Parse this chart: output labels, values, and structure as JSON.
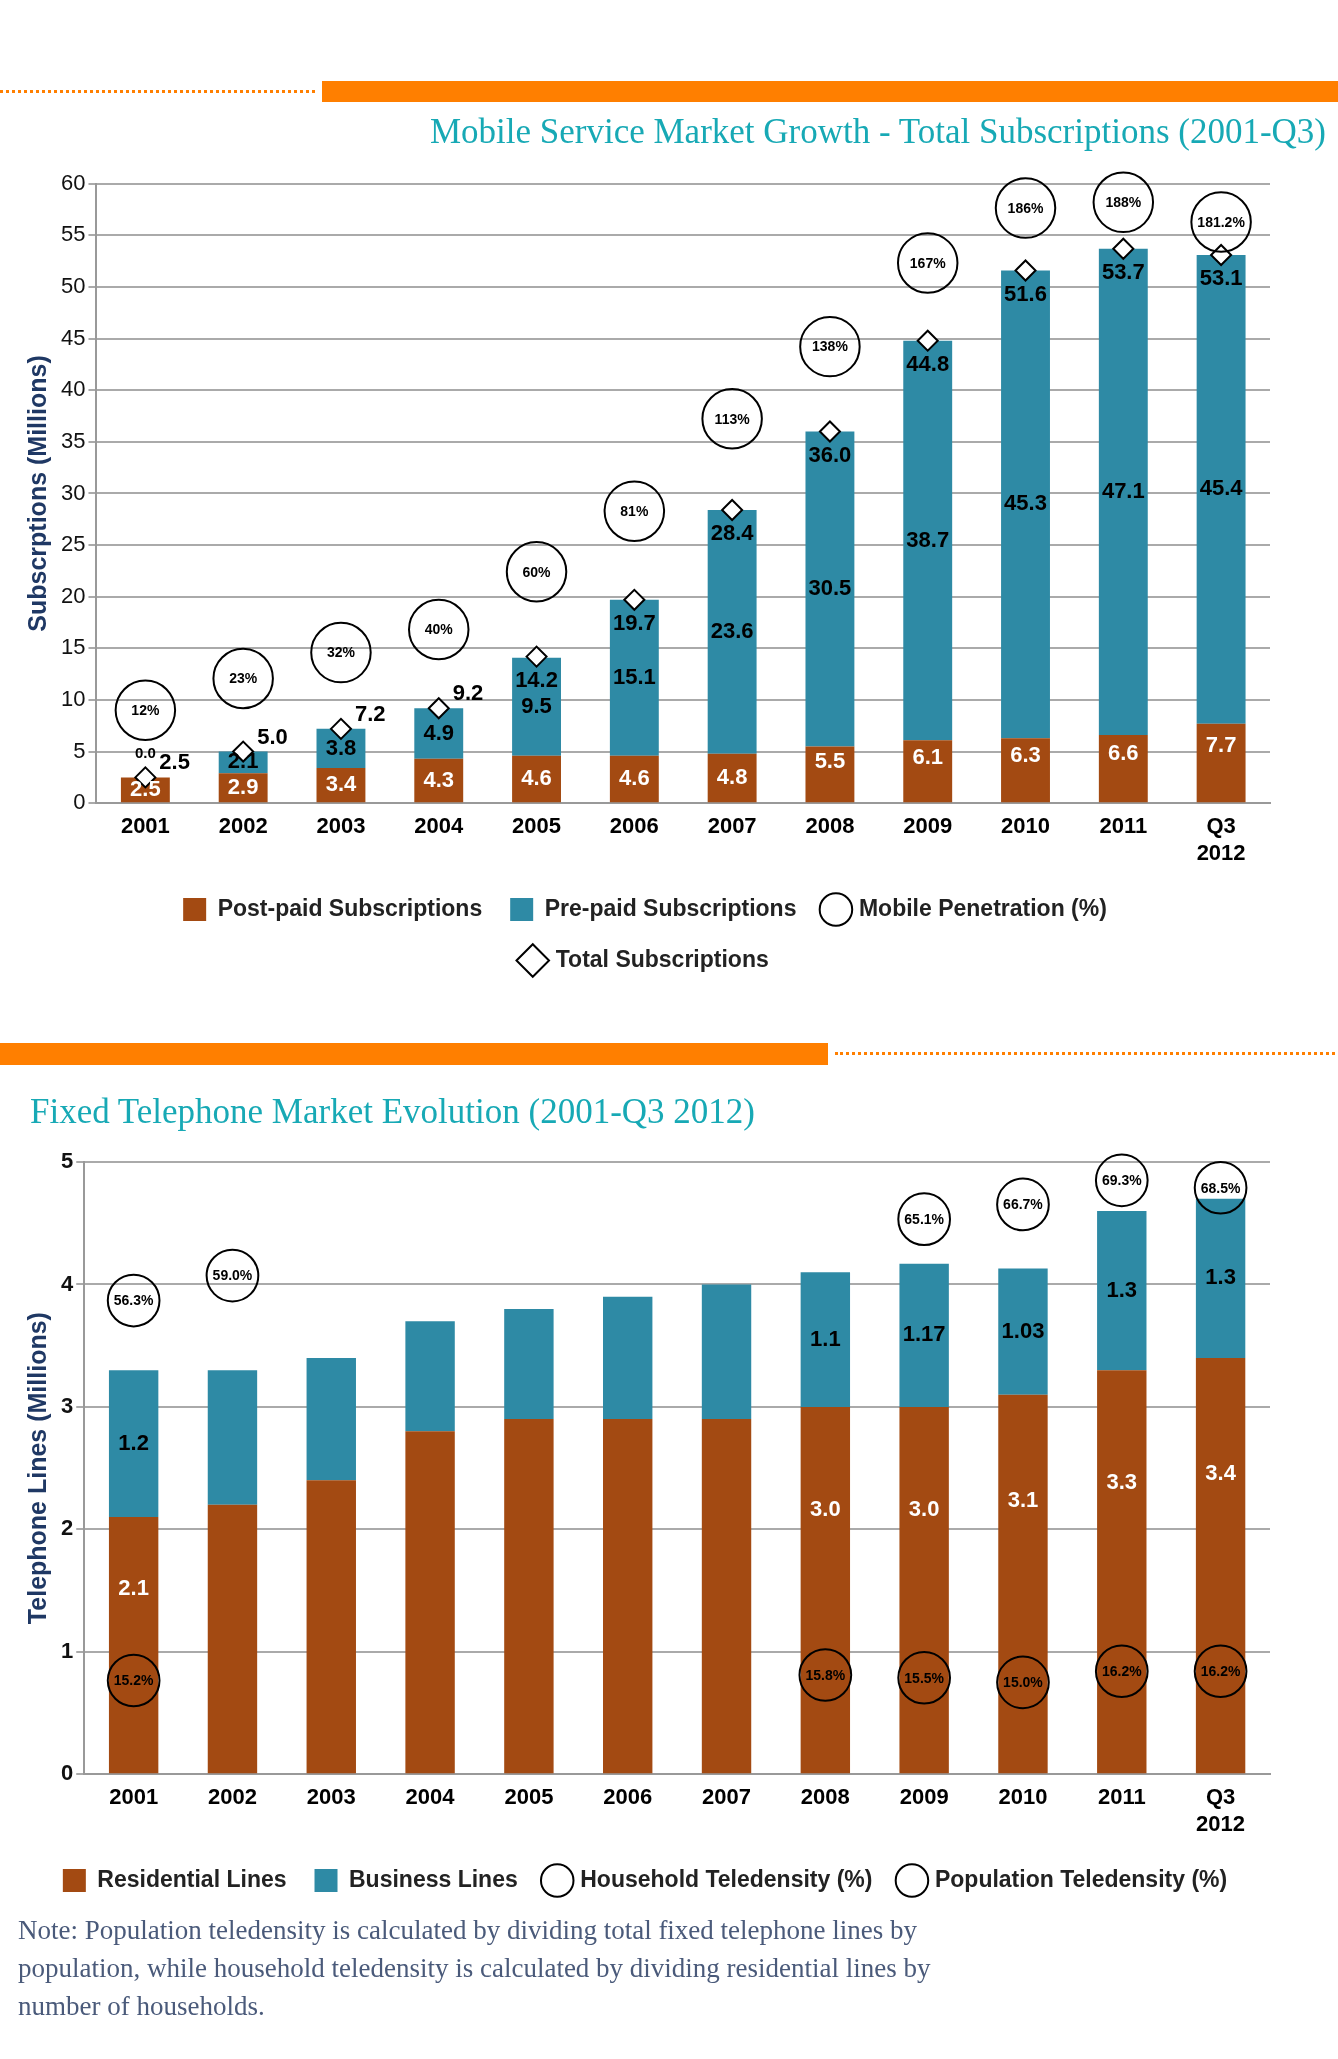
{
  "chart_data": [
    {
      "type": "bar",
      "title": "Mobile Service Market Growth - Total Subscriptions (2001-Q3)",
      "ylabel": "Subscrptions (Millions)",
      "categories": [
        "2001",
        "2002",
        "2003",
        "2004",
        "2005",
        "2006",
        "2007",
        "2008",
        "2009",
        "2010",
        "2011",
        "Q3 2012"
      ],
      "stacked": true,
      "ylim": [
        0,
        60
      ],
      "yticks": [
        0,
        5,
        10,
        15,
        20,
        25,
        30,
        35,
        40,
        45,
        50,
        55,
        60
      ],
      "grid": "y",
      "legend": "bottom",
      "series": [
        {
          "name": "Post-paid Subscriptions",
          "color": "#a34a12",
          "values": [
            2.5,
            2.9,
            3.4,
            4.3,
            4.6,
            4.6,
            4.8,
            5.5,
            6.1,
            6.3,
            6.6,
            7.7
          ],
          "value_labels": [
            "2.5",
            "2.9",
            "3.4",
            "4.3",
            "4.6",
            "4.6",
            "4.8",
            "5.5",
            "6.1",
            "6.3",
            "6.6",
            "7.7"
          ]
        },
        {
          "name": "Pre-paid Subscriptions",
          "color": "#2e8aa5",
          "values": [
            0.0,
            2.1,
            3.8,
            4.9,
            9.5,
            15.1,
            23.6,
            30.5,
            38.7,
            45.3,
            47.1,
            45.4
          ],
          "value_labels": [
            "0.0",
            "2.1",
            "3.8",
            "4.9",
            "9.5",
            "15.1",
            "23.6",
            "30.5",
            "38.7",
            "45.3",
            "47.1",
            "45.4"
          ]
        },
        {
          "name": "Mobile Penetration (%)",
          "type": "scatter",
          "marker": "circle",
          "axis": "y2",
          "color": "#000000",
          "values": [
            12,
            23,
            32,
            40,
            60,
            81,
            113,
            138,
            167,
            186,
            188,
            181.2
          ],
          "value_labels": [
            "12%",
            "23%",
            "32%",
            "40%",
            "60%",
            "81%",
            "113%",
            "138%",
            "167%",
            "186%",
            "188%",
            "181.2%"
          ]
        },
        {
          "name": "Total Subscriptions",
          "type": "scatter",
          "marker": "diamond",
          "color": "#ffffff",
          "values": [
            2.5,
            5.0,
            7.2,
            9.2,
            14.2,
            19.7,
            28.4,
            36.0,
            44.8,
            51.6,
            53.7,
            53.1
          ],
          "value_labels": [
            "2.5",
            "5.0",
            "7.2",
            "9.2",
            "14.2",
            "19.7",
            "28.4",
            "36.0",
            "44.8",
            "51.6",
            "53.7",
            "53.1"
          ]
        }
      ]
    },
    {
      "type": "bar",
      "title": "Fixed Telephone Market Evolution (2001-Q3 2012)",
      "ylabel": "Telephone Lines (Millions)",
      "categories": [
        "2001",
        "2002",
        "2003",
        "2004",
        "2005",
        "2006",
        "2007",
        "2008",
        "2009",
        "2010",
        "2011",
        "Q3 2012"
      ],
      "stacked": true,
      "ylim": [
        0,
        5
      ],
      "yticks": [
        0,
        1,
        2,
        3,
        4,
        5
      ],
      "grid": "y",
      "legend": "bottom",
      "annotations": [
        "Note: Population teledensity is calculated by dividing total fixed telephone lines by population, while household teledensity is calculated by dividing residential lines by number of households."
      ],
      "series": [
        {
          "name": "Residential Lines",
          "color": "#a34a12",
          "values": [
            2.1,
            2.2,
            2.4,
            2.8,
            2.9,
            2.9,
            2.9,
            3.0,
            3.0,
            3.1,
            3.3,
            3.4
          ],
          "value_labels": [
            "2.1",
            null,
            null,
            null,
            null,
            null,
            null,
            "3.0",
            "3.0",
            "3.1",
            "3.3",
            "3.4"
          ]
        },
        {
          "name": "Business Lines",
          "color": "#2e8aa5",
          "values": [
            1.2,
            1.1,
            1.0,
            0.9,
            0.9,
            1.0,
            1.1,
            1.1,
            1.17,
            1.03,
            1.3,
            1.3
          ],
          "value_labels": [
            "1.2",
            null,
            null,
            null,
            null,
            null,
            null,
            "1.1",
            "1.17",
            "1.03",
            "1.3",
            "1.3"
          ]
        },
        {
          "name": "Household Teledensity (%)",
          "type": "scatter",
          "marker": "circle",
          "axis": "y2",
          "color": "#000000",
          "values": [
            56.3,
            59.0,
            null,
            null,
            null,
            null,
            null,
            null,
            65.1,
            66.7,
            69.3,
            68.5
          ],
          "value_labels": [
            "56.3%",
            "59.0%",
            null,
            null,
            null,
            null,
            null,
            null,
            "65.1%",
            "66.7%",
            "69.3%",
            "68.5%"
          ]
        },
        {
          "name": "Population Teledensity (%)",
          "type": "scatter",
          "marker": "circle",
          "axis": "y2",
          "color": "#000000",
          "values": [
            15.2,
            null,
            null,
            null,
            null,
            null,
            null,
            15.8,
            15.5,
            15.0,
            16.2,
            16.2
          ],
          "value_labels": [
            "15.2%",
            null,
            null,
            null,
            null,
            null,
            null,
            "15.8%",
            "15.5%",
            "15.0%",
            "16.2%",
            "16.2%"
          ]
        }
      ]
    }
  ]
}
